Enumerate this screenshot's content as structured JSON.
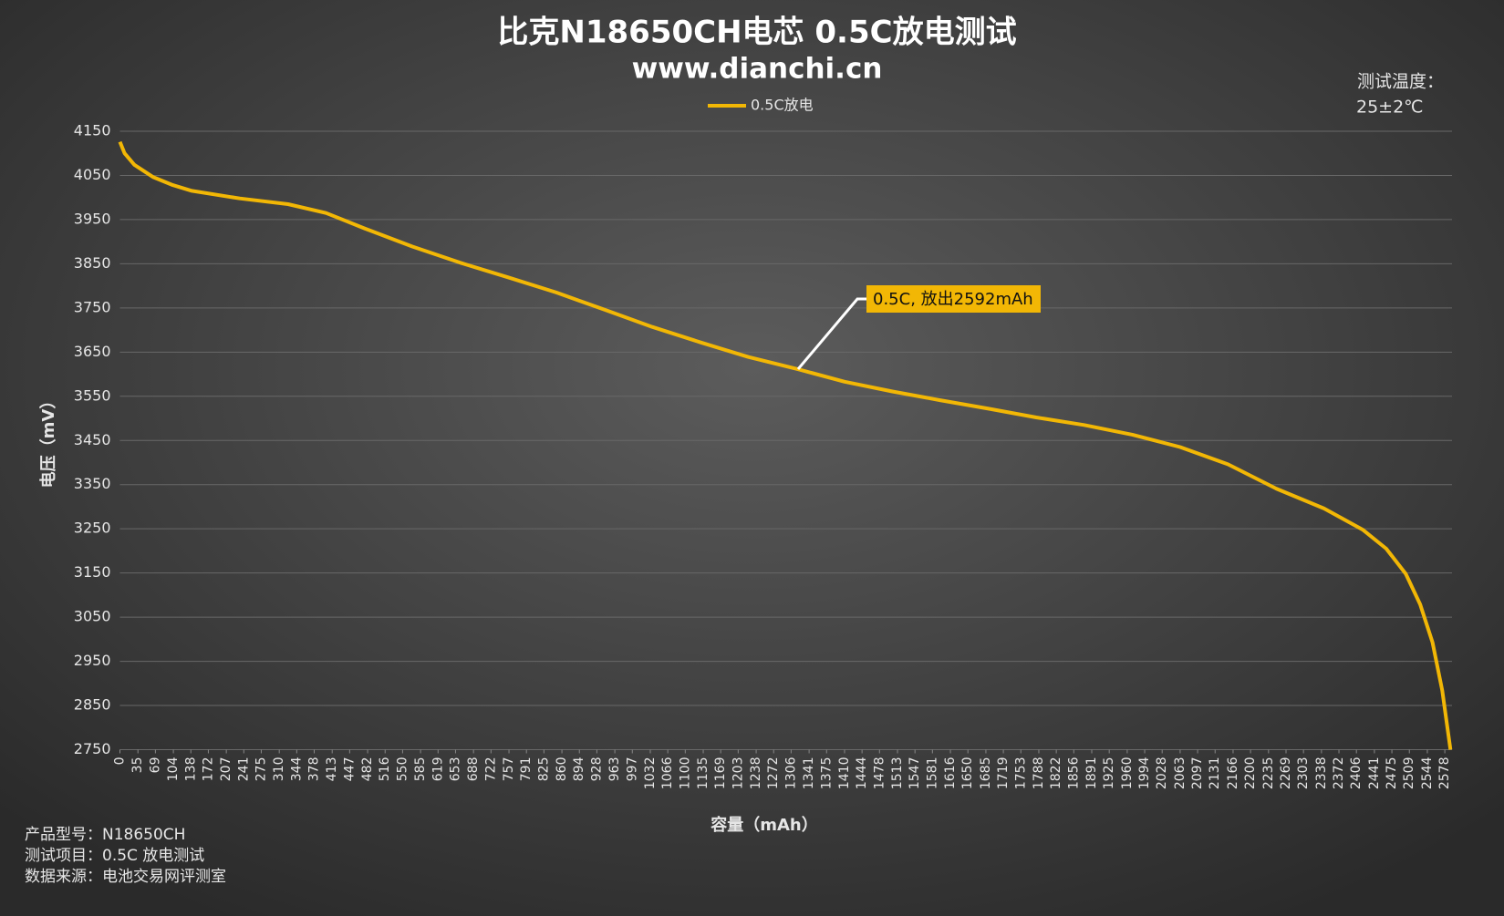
{
  "chart_data": {
    "type": "line",
    "title": "比克N18650CH电芯 0.5C放电测试",
    "subtitle": "www.dianchi.cn",
    "temperature_label": "测试温度：",
    "temperature_value": "25±2℃",
    "x_label": "容量（mAh）",
    "y_label": "电压（mV）",
    "annotation": "0.5C, 放出2592mAh",
    "notes": [
      "产品型号：N18650CH",
      "测试项目：0.5C 放电测试",
      "数据来源：电池交易网评测室"
    ],
    "x": [
      0,
      9,
      28,
      65,
      103,
      140,
      233,
      327,
      401,
      476,
      569,
      663,
      756,
      849,
      943,
      1036,
      1130,
      1223,
      1320,
      1410,
      1503,
      1596,
      1690,
      1783,
      1876,
      1970,
      2063,
      2156,
      2250,
      2343,
      2418,
      2464,
      2502,
      2530,
      2554,
      2573,
      2589
    ],
    "series": [
      {
        "name": "0.5C放电",
        "color": "#f2b705",
        "values": [
          4126,
          4100,
          4074,
          4046,
          4028,
          4015,
          3998,
          3985,
          3965,
          3930,
          3889,
          3852,
          3819,
          3785,
          3746,
          3707,
          3672,
          3639,
          3611,
          3583,
          3561,
          3541,
          3522,
          3502,
          3485,
          3463,
          3435,
          3396,
          3341,
          3296,
          3248,
          3205,
          3148,
          3079,
          2993,
          2884,
          2750
        ]
      }
    ],
    "xlim": [
      0,
      2592
    ],
    "xticks": [
      0,
      35,
      69,
      104,
      138,
      172,
      207,
      241,
      275,
      310,
      344,
      378,
      413,
      447,
      482,
      516,
      550,
      585,
      619,
      653,
      688,
      722,
      757,
      791,
      825,
      860,
      894,
      928,
      963,
      997,
      1032,
      1066,
      1100,
      1135,
      1169,
      1203,
      1238,
      1272,
      1306,
      1341,
      1375,
      1410,
      1444,
      1478,
      1513,
      1547,
      1581,
      1616,
      1650,
      1685,
      1719,
      1753,
      1788,
      1822,
      1856,
      1891,
      1925,
      1960,
      1994,
      2028,
      2063,
      2097,
      2131,
      2166,
      2200,
      2235,
      2269,
      2303,
      2338,
      2372,
      2406,
      2441,
      2475,
      2509,
      2544,
      2578
    ],
    "ylim": [
      2750,
      4150
    ],
    "yticks": [
      2750,
      2850,
      2950,
      3050,
      3150,
      3250,
      3350,
      3450,
      3550,
      3650,
      3750,
      3850,
      3950,
      4050,
      4150
    ],
    "grid": true,
    "legend": "top"
  }
}
